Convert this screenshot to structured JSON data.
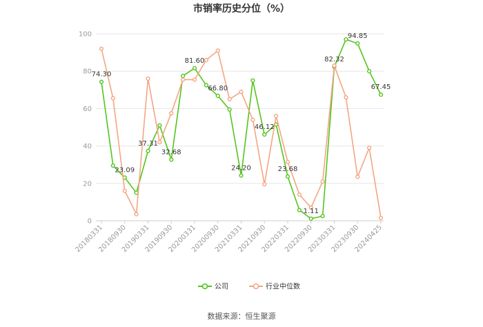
{
  "chart_data": {
    "type": "line",
    "title": "市销率历史分位（%）",
    "xlabel": "",
    "ylabel": "",
    "ylim": [
      0,
      100
    ],
    "yticks": [
      0,
      20,
      40,
      60,
      80,
      100
    ],
    "xticks": [
      "20180331",
      "20180930",
      "20190331",
      "20190930",
      "20200331",
      "20200930",
      "20210331",
      "20210930",
      "20220331",
      "20220930",
      "20230331",
      "20230930",
      "20240425"
    ],
    "grid": true,
    "legend_position": "bottom",
    "series": [
      {
        "name": "公司",
        "color": "#52c41a",
        "values": [
          74.3,
          29.5,
          23.09,
          15,
          37.31,
          51,
          32.68,
          77.5,
          81.6,
          72.5,
          66.8,
          59.5,
          24.2,
          75,
          46.12,
          51.5,
          23.68,
          5.7,
          1.11,
          2.5,
          82.32,
          97,
          94.85,
          80,
          67.45
        ]
      },
      {
        "name": "行业中位数",
        "color": "#f4a582",
        "values": [
          92,
          65.5,
          16,
          3.5,
          76,
          42,
          57.5,
          75.5,
          75.5,
          86,
          91,
          65,
          69,
          54,
          19.5,
          56,
          31.5,
          14,
          7,
          21,
          83,
          66,
          23.5,
          39,
          1.5
        ]
      }
    ],
    "annotations": [
      {
        "series": 0,
        "index": 0,
        "text": "74.30"
      },
      {
        "series": 0,
        "index": 2,
        "text": "23.09"
      },
      {
        "series": 0,
        "index": 4,
        "text": "37.31"
      },
      {
        "series": 0,
        "index": 6,
        "text": "32.68"
      },
      {
        "series": 0,
        "index": 8,
        "text": "81.60"
      },
      {
        "series": 0,
        "index": 10,
        "text": "66.80"
      },
      {
        "series": 0,
        "index": 12,
        "text": "24.20"
      },
      {
        "series": 0,
        "index": 14,
        "text": "46.12"
      },
      {
        "series": 0,
        "index": 16,
        "text": "23.68"
      },
      {
        "series": 0,
        "index": 18,
        "text": "1.11"
      },
      {
        "series": 0,
        "index": 20,
        "text": "82.32"
      },
      {
        "series": 0,
        "index": 22,
        "text": "94.85"
      },
      {
        "series": 0,
        "index": 24,
        "text": "67.45"
      }
    ]
  },
  "footer": {
    "source": "数据来源：恒生聚源"
  }
}
